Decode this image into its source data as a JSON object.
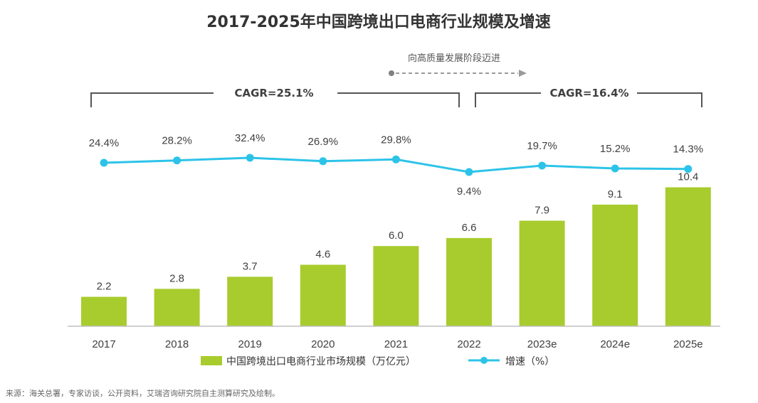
{
  "chart_data": {
    "type": "bar",
    "title": "2017-2025年中国跨境出口电商行业规模及增速",
    "categories": [
      "2017",
      "2018",
      "2019",
      "2020",
      "2021",
      "2022",
      "2023e",
      "2024e",
      "2025e"
    ],
    "series": [
      {
        "name": "中国跨境出口电商行业市场规模（万亿元）",
        "kind": "bar",
        "values": [
          2.2,
          2.8,
          3.7,
          4.6,
          6.0,
          6.6,
          7.9,
          9.1,
          10.4
        ],
        "labels": [
          "2.2",
          "2.8",
          "3.7",
          "4.6",
          "6.0",
          "6.6",
          "7.9",
          "9.1",
          "10.4"
        ],
        "color": "#a8cc2e"
      },
      {
        "name": "增速（%）",
        "kind": "line",
        "values": [
          24.4,
          28.2,
          32.4,
          26.9,
          29.8,
          9.4,
          19.7,
          15.2,
          14.3
        ],
        "labels": [
          "24.4%",
          "28.2%",
          "32.4%",
          "26.9%",
          "29.8%",
          "9.4%",
          "19.7%",
          "15.2%",
          "14.3%"
        ],
        "color": "#2dc3e8"
      }
    ],
    "ylim_bar": [
      0,
      10.5
    ],
    "annotations": {
      "cagr_first": "CAGR=25.1%",
      "cagr_second": "CAGR=16.4%",
      "stage_note": "向高质量发展阶段迈进"
    },
    "legend_position": "bottom",
    "grid": false,
    "source": "来源：海关总署，专家访谈，公开资料，艾瑞咨询研究院自主测算研究及绘制。"
  }
}
